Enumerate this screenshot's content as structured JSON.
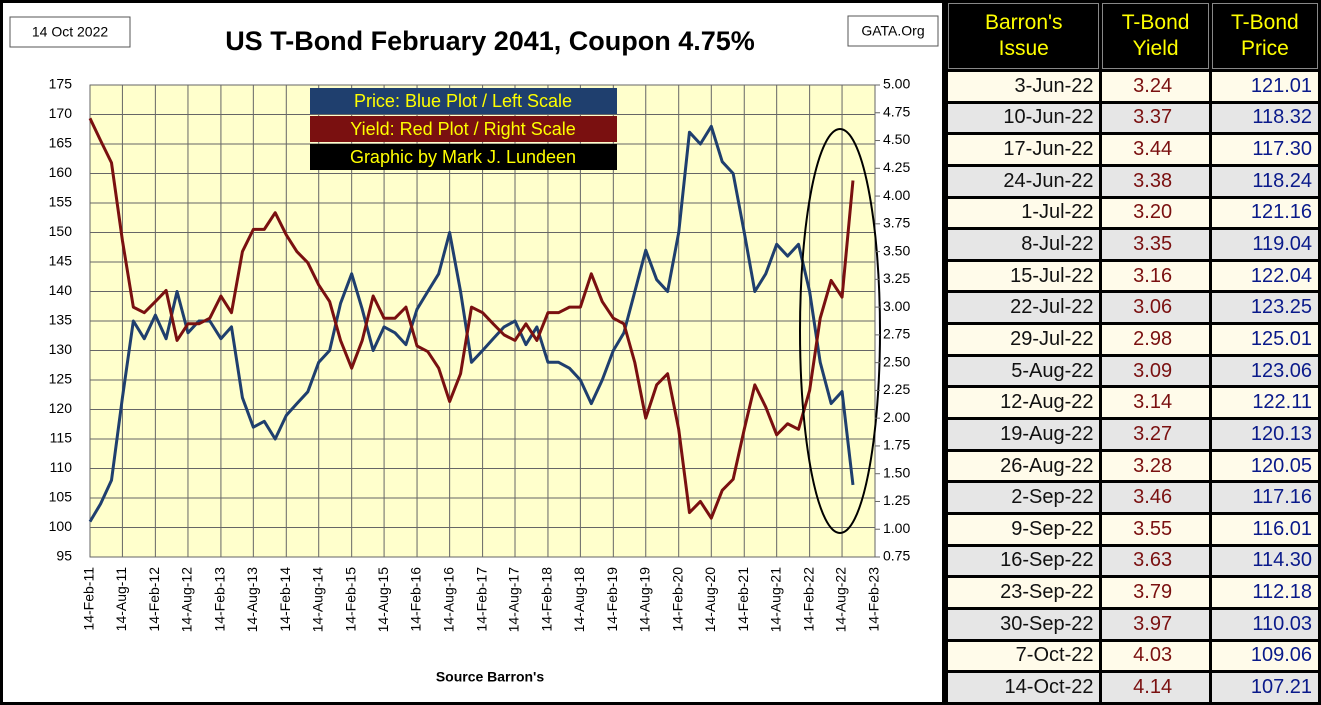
{
  "chart_data": {
    "type": "line",
    "date_label": "14 Oct 2022",
    "title": "US T-Bond February 2041, Coupon 4.75%",
    "source_label": "GATA.Org",
    "xlabel": "Source Barron's",
    "note": "Graphic by Mark J. Lundeen",
    "x": [
      "2011-02-14",
      "2011-04-14",
      "2011-06-14",
      "2011-08-14",
      "2011-10-14",
      "2011-12-14",
      "2012-02-14",
      "2012-04-14",
      "2012-06-14",
      "2012-08-14",
      "2012-10-14",
      "2012-12-14",
      "2013-02-14",
      "2013-04-14",
      "2013-06-14",
      "2013-08-14",
      "2013-10-14",
      "2013-12-14",
      "2014-02-14",
      "2014-04-14",
      "2014-06-14",
      "2014-08-14",
      "2014-10-14",
      "2014-12-14",
      "2015-02-14",
      "2015-04-14",
      "2015-06-14",
      "2015-08-14",
      "2015-10-14",
      "2015-12-14",
      "2016-02-14",
      "2016-04-14",
      "2016-06-14",
      "2016-08-14",
      "2016-10-14",
      "2016-12-14",
      "2017-02-14",
      "2017-04-14",
      "2017-06-14",
      "2017-08-14",
      "2017-10-14",
      "2017-12-14",
      "2018-02-14",
      "2018-04-14",
      "2018-06-14",
      "2018-08-14",
      "2018-10-14",
      "2018-12-14",
      "2019-02-14",
      "2019-04-14",
      "2019-06-14",
      "2019-08-14",
      "2019-10-14",
      "2019-12-14",
      "2020-02-14",
      "2020-04-14",
      "2020-06-14",
      "2020-08-14",
      "2020-10-14",
      "2020-12-14",
      "2021-02-14",
      "2021-04-14",
      "2021-06-14",
      "2021-08-14",
      "2021-10-14",
      "2021-12-14",
      "2022-02-14",
      "2022-04-14",
      "2022-06-14",
      "2022-08-14",
      "2022-10-14"
    ],
    "series": [
      {
        "name": "Price:  Blue Plot / Left Scale",
        "color": "#1f3f6e",
        "axis": "y",
        "values": [
          101,
          104,
          108,
          122,
          135,
          132,
          136,
          132,
          140,
          133,
          135,
          135,
          132,
          134,
          122,
          117,
          118,
          115,
          119,
          121,
          123,
          128,
          130,
          138,
          143,
          137,
          130,
          134,
          133,
          131,
          137,
          140,
          143,
          150,
          140,
          128,
          130,
          132,
          134,
          135,
          131,
          134,
          128,
          128,
          127,
          125,
          121,
          125,
          130,
          133,
          140,
          147,
          142,
          140,
          150,
          167,
          165,
          168,
          162,
          160,
          150,
          140,
          143,
          148,
          146,
          148,
          140,
          128,
          121.01,
          123.06,
          107.21
        ]
      },
      {
        "name": "Yield:  Red Plot / Right Scale",
        "color": "#7a1010",
        "axis": "y2",
        "values": [
          4.7,
          4.5,
          4.3,
          3.6,
          3.0,
          2.95,
          3.05,
          3.15,
          2.7,
          2.85,
          2.85,
          2.9,
          3.1,
          2.95,
          3.5,
          3.7,
          3.7,
          3.85,
          3.65,
          3.5,
          3.4,
          3.2,
          3.05,
          2.7,
          2.45,
          2.7,
          3.1,
          2.9,
          2.9,
          3.0,
          2.65,
          2.6,
          2.45,
          2.15,
          2.4,
          3.0,
          2.95,
          2.85,
          2.75,
          2.7,
          2.85,
          2.7,
          2.95,
          2.95,
          3.0,
          3.0,
          3.3,
          3.05,
          2.9,
          2.85,
          2.5,
          2.0,
          2.3,
          2.4,
          1.9,
          1.15,
          1.25,
          1.1,
          1.35,
          1.45,
          1.9,
          2.3,
          2.1,
          1.85,
          1.95,
          1.9,
          2.25,
          2.9,
          3.24,
          3.09,
          4.14
        ]
      }
    ],
    "xlim": [
      "2011-02-14",
      "2023-02-14"
    ],
    "xticks": [
      {
        "value": "2011-02-14",
        "label": "14-Feb-11"
      },
      {
        "value": "2011-08-14",
        "label": "14-Aug-11"
      },
      {
        "value": "2012-02-14",
        "label": "14-Feb-12"
      },
      {
        "value": "2012-08-14",
        "label": "14-Aug-12"
      },
      {
        "value": "2013-02-14",
        "label": "14-Feb-13"
      },
      {
        "value": "2013-08-14",
        "label": "14-Aug-13"
      },
      {
        "value": "2014-02-14",
        "label": "14-Feb-14"
      },
      {
        "value": "2014-08-14",
        "label": "14-Aug-14"
      },
      {
        "value": "2015-02-14",
        "label": "14-Feb-15"
      },
      {
        "value": "2015-08-14",
        "label": "14-Aug-15"
      },
      {
        "value": "2016-02-14",
        "label": "14-Feb-16"
      },
      {
        "value": "2016-08-14",
        "label": "14-Aug-16"
      },
      {
        "value": "2017-02-14",
        "label": "14-Feb-17"
      },
      {
        "value": "2017-08-14",
        "label": "14-Aug-17"
      },
      {
        "value": "2018-02-14",
        "label": "14-Feb-18"
      },
      {
        "value": "2018-08-14",
        "label": "14-Aug-18"
      },
      {
        "value": "2019-02-14",
        "label": "14-Feb-19"
      },
      {
        "value": "2019-08-14",
        "label": "14-Aug-19"
      },
      {
        "value": "2020-02-14",
        "label": "14-Feb-20"
      },
      {
        "value": "2020-08-14",
        "label": "14-Aug-20"
      },
      {
        "value": "2021-02-14",
        "label": "14-Feb-21"
      },
      {
        "value": "2021-08-14",
        "label": "14-Aug-21"
      },
      {
        "value": "2022-02-14",
        "label": "14-Feb-22"
      },
      {
        "value": "2022-08-14",
        "label": "14-Aug-22"
      },
      {
        "value": "2023-02-14",
        "label": "14-Feb-23"
      }
    ],
    "ylim": [
      95,
      175
    ],
    "yticks": [
      95,
      100,
      105,
      110,
      115,
      120,
      125,
      130,
      135,
      140,
      145,
      150,
      155,
      160,
      165,
      170,
      175
    ],
    "y2lim": [
      0.75,
      5
    ],
    "y2ticks": [
      0.75,
      {
        "value": 1,
        "label": "1.00"
      },
      1.25,
      {
        "value": 1.5,
        "label": "1.50"
      },
      1.75,
      {
        "value": 2,
        "label": "2.00"
      },
      2.25,
      {
        "value": 2.5,
        "label": "2.50"
      },
      2.75,
      {
        "value": 3,
        "label": "3.00"
      },
      3.25,
      {
        "value": 3.5,
        "label": "3.50"
      },
      3.75,
      {
        "value": 4,
        "label": "4.00"
      },
      4.25,
      {
        "value": 4.5,
        "label": "4.50"
      },
      4.75,
      {
        "value": 5,
        "label": "5.00"
      }
    ],
    "grid": true
  },
  "table": {
    "header": [
      "Barron's\nIssue",
      "T-Bond\nYield",
      "T-Bond\nPrice"
    ],
    "rows": [
      [
        "3-Jun-22",
        "3.24",
        "121.01"
      ],
      [
        "10-Jun-22",
        "3.37",
        "118.32"
      ],
      [
        "17-Jun-22",
        "3.44",
        "117.30"
      ],
      [
        "24-Jun-22",
        "3.38",
        "118.24"
      ],
      [
        "1-Jul-22",
        "3.20",
        "121.16"
      ],
      [
        "8-Jul-22",
        "3.35",
        "119.04"
      ],
      [
        "15-Jul-22",
        "3.16",
        "122.04"
      ],
      [
        "22-Jul-22",
        "3.06",
        "123.25"
      ],
      [
        "29-Jul-22",
        "2.98",
        "125.01"
      ],
      [
        "5-Aug-22",
        "3.09",
        "123.06"
      ],
      [
        "12-Aug-22",
        "3.14",
        "122.11"
      ],
      [
        "19-Aug-22",
        "3.27",
        "120.13"
      ],
      [
        "26-Aug-22",
        "3.28",
        "120.05"
      ],
      [
        "2-Sep-22",
        "3.46",
        "117.16"
      ],
      [
        "9-Sep-22",
        "3.55",
        "116.01"
      ],
      [
        "16-Sep-22",
        "3.63",
        "114.30"
      ],
      [
        "23-Sep-22",
        "3.79",
        "112.18"
      ],
      [
        "30-Sep-22",
        "3.97",
        "110.03"
      ],
      [
        "7-Oct-22",
        "4.03",
        "109.06"
      ],
      [
        "14-Oct-22",
        "4.14",
        "107.21"
      ]
    ]
  }
}
